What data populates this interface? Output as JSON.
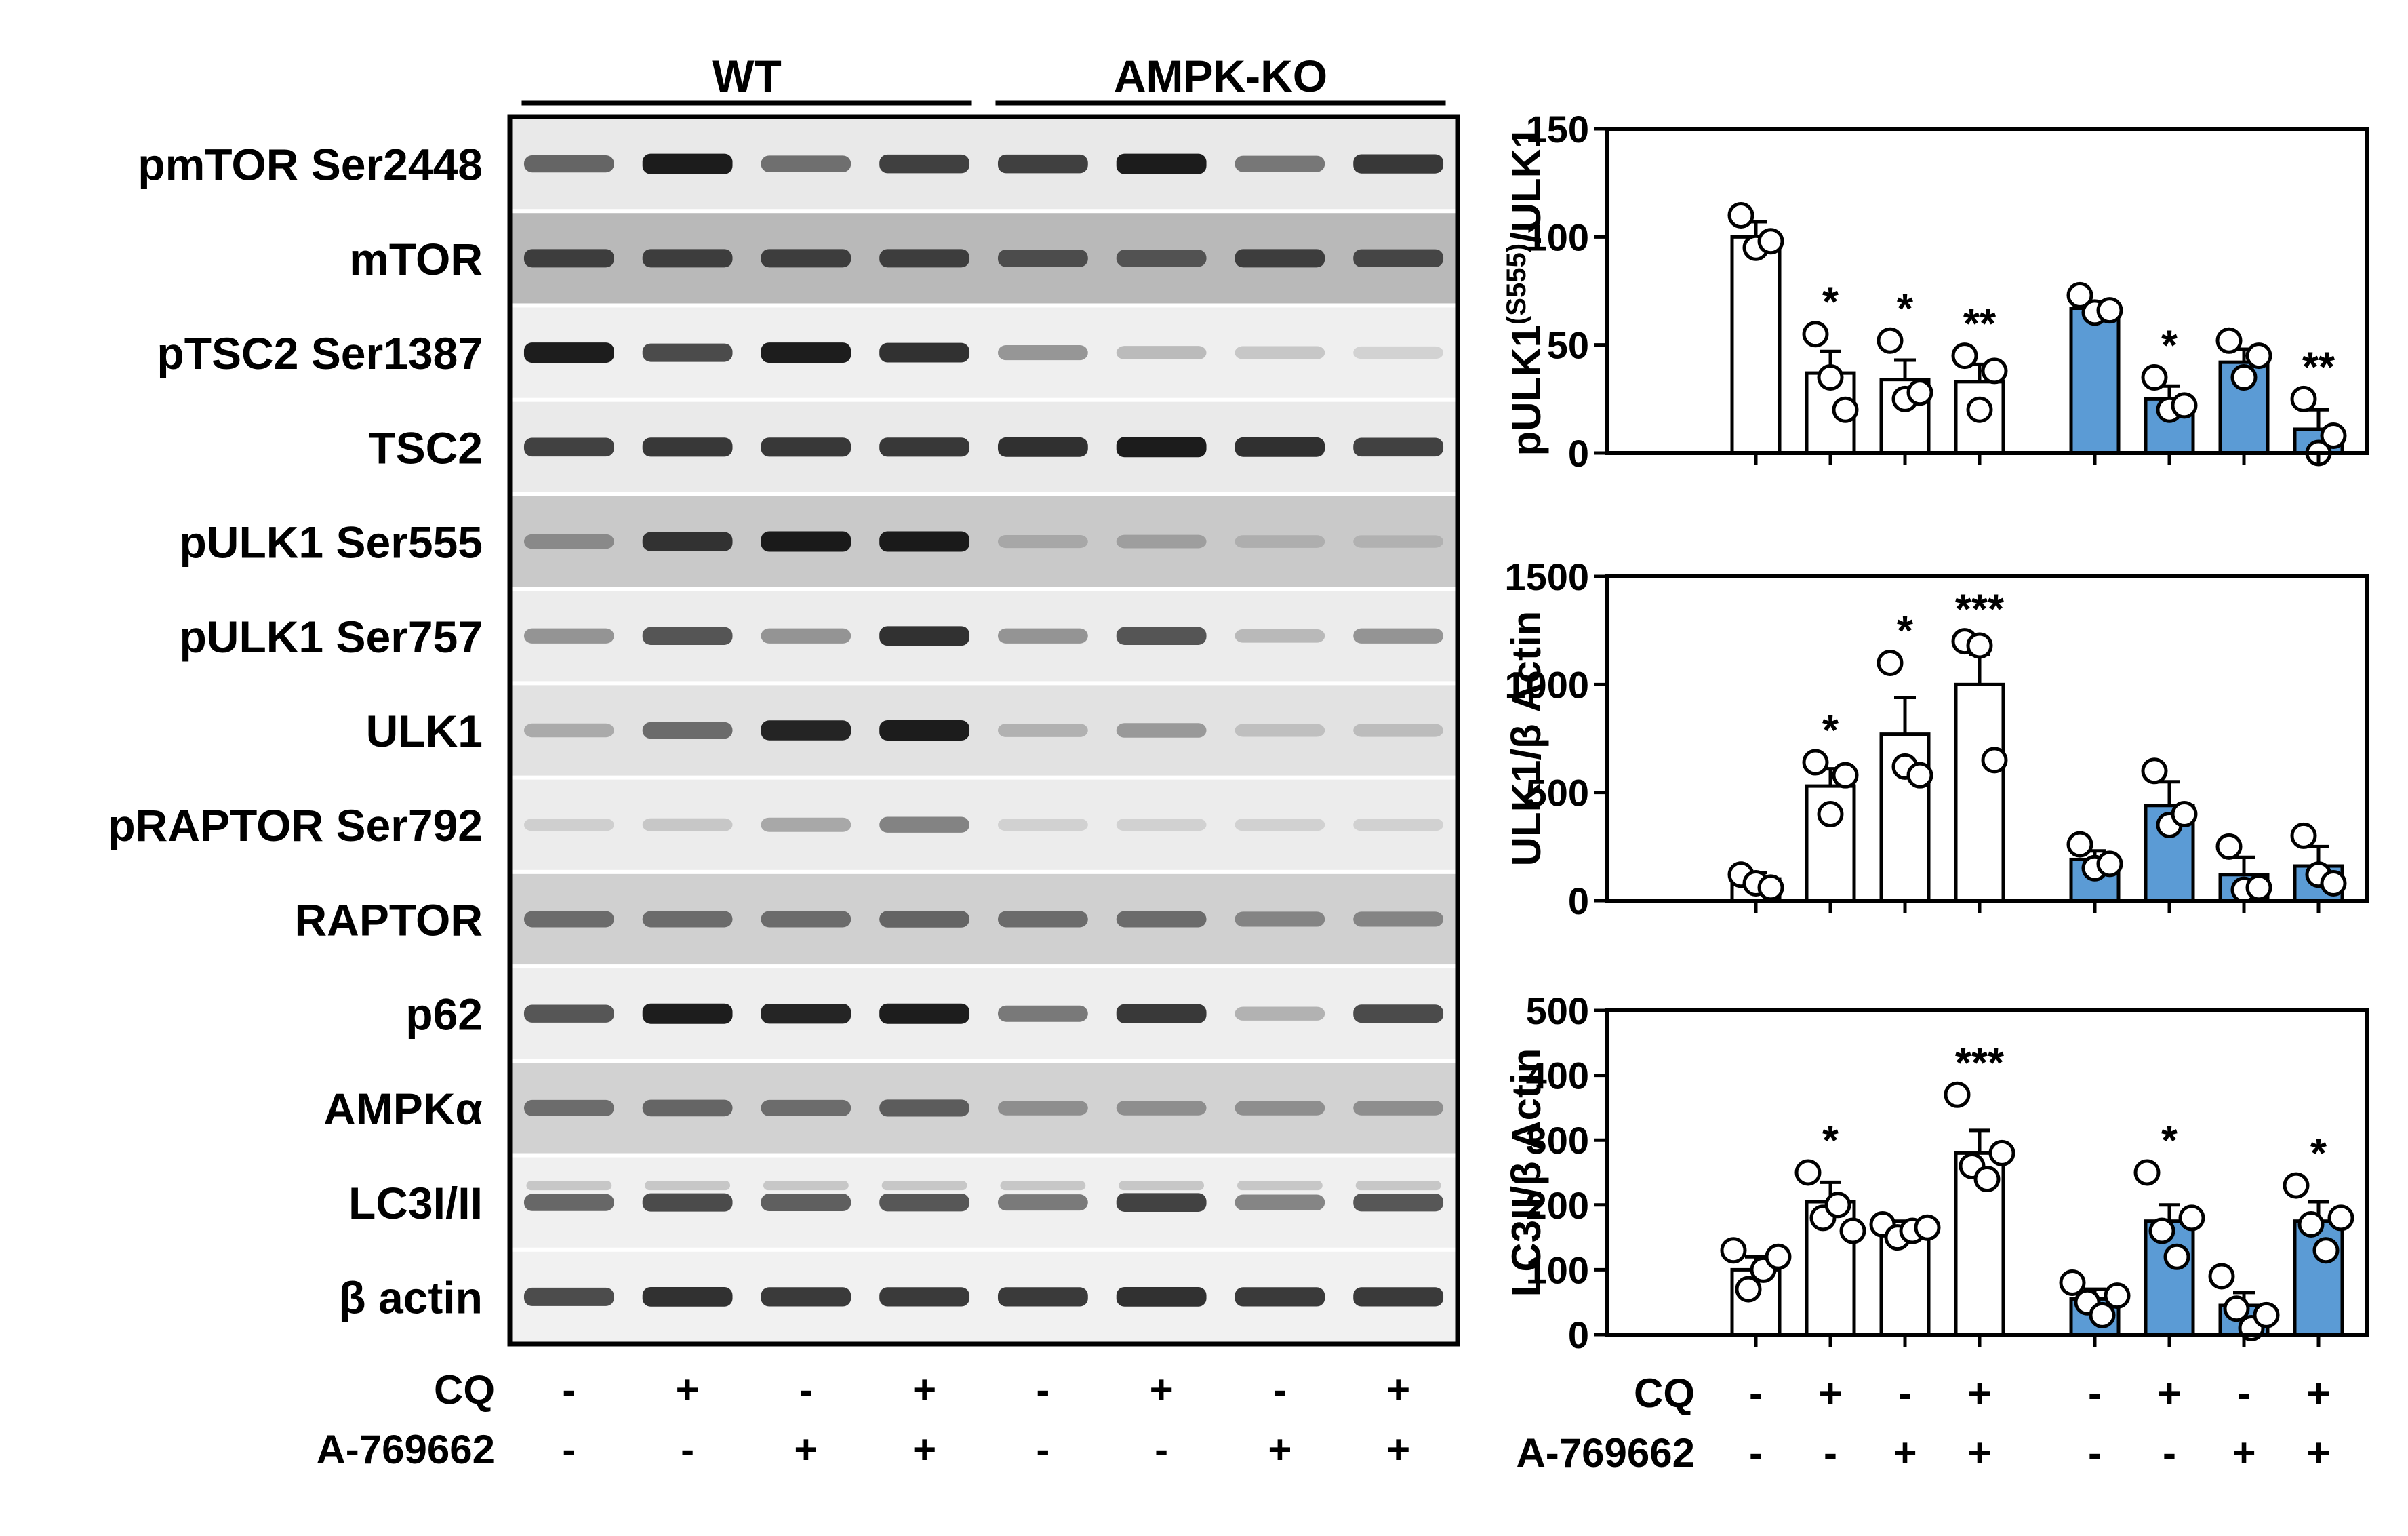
{
  "figure": {
    "groups": [
      "WT",
      "AMPK-KO"
    ],
    "proteins": [
      "pmTOR Ser2448",
      "mTOR",
      "pTSC2 Ser1387",
      "TSC2",
      "pULK1 Ser555",
      "pULK1 Ser757",
      "ULK1",
      "pRAPTOR Ser792",
      "RAPTOR",
      "p62",
      "AMPKα",
      "LC3I/II",
      "β actin"
    ],
    "treatments": [
      {
        "label": "CQ",
        "values": [
          "-",
          "+",
          "-",
          "+",
          "-",
          "+",
          "-",
          "+"
        ]
      },
      {
        "label": "A-769662",
        "values": [
          "-",
          "-",
          "+",
          "+",
          "-",
          "-",
          "+",
          "+"
        ]
      }
    ]
  },
  "colors": {
    "wt_bar": "#ffffff",
    "ko_bar": "#5b9bd5",
    "band": "#111111",
    "text": "#000000"
  },
  "chart_data": [
    {
      "type": "bar",
      "ylabel": "pULK1(S555)/ULK1",
      "ylabel_main": "pULK1",
      "ylabel_sup": "(S555)",
      "ylabel_tail": "/ULK1",
      "ylim": [
        0,
        150
      ],
      "yticks": [
        0,
        50,
        100,
        150
      ],
      "ytick_labels": [
        "0",
        "50",
        "100",
        "150"
      ],
      "grid": false,
      "categories": [
        "WT -/-",
        "WT CQ",
        "WT A",
        "WT CQ+A",
        "KO -/-",
        "KO CQ",
        "KO A",
        "KO CQ+A"
      ],
      "values": [
        100,
        37,
        34,
        33,
        67,
        25,
        42,
        11
      ],
      "errors": [
        7,
        10,
        9,
        8,
        3,
        6,
        6,
        9
      ],
      "points": [
        [
          110,
          95,
          98
        ],
        [
          55,
          35,
          20
        ],
        [
          52,
          25,
          28
        ],
        [
          45,
          20,
          38
        ],
        [
          73,
          65,
          66
        ],
        [
          35,
          20,
          22
        ],
        [
          52,
          35,
          45
        ],
        [
          25,
          0,
          8
        ]
      ],
      "significance": [
        "",
        "*",
        "*",
        "**",
        "",
        "*",
        "",
        "**"
      ],
      "bar_colors": [
        "#ffffff",
        "#ffffff",
        "#ffffff",
        "#ffffff",
        "#5b9bd5",
        "#5b9bd5",
        "#5b9bd5",
        "#5b9bd5"
      ]
    },
    {
      "type": "bar",
      "ylabel": "ULK1/β Actin",
      "ylim": [
        0,
        1500
      ],
      "yticks": [
        0,
        500,
        1000,
        1500
      ],
      "ytick_labels": [
        "0",
        "500",
        "1000",
        "1500"
      ],
      "grid": false,
      "categories": [
        "WT -/-",
        "WT CQ",
        "WT A",
        "WT CQ+A",
        "KO -/-",
        "KO CQ",
        "KO A",
        "KO CQ+A"
      ],
      "values": [
        100,
        530,
        770,
        1000,
        190,
        440,
        120,
        160
      ],
      "errors": [
        30,
        80,
        170,
        140,
        40,
        110,
        80,
        90
      ],
      "points": [
        [
          120,
          80,
          60
        ],
        [
          640,
          400,
          580
        ],
        [
          1100,
          620,
          580
        ],
        [
          1200,
          1180,
          650
        ],
        [
          260,
          150,
          170
        ],
        [
          600,
          350,
          400
        ],
        [
          250,
          50,
          60
        ],
        [
          300,
          120,
          80
        ]
      ],
      "significance": [
        "",
        "*",
        "*",
        "***",
        "",
        "",
        "",
        ""
      ],
      "bar_colors": [
        "#ffffff",
        "#ffffff",
        "#ffffff",
        "#ffffff",
        "#5b9bd5",
        "#5b9bd5",
        "#5b9bd5",
        "#5b9bd5"
      ]
    },
    {
      "type": "bar",
      "ylabel": "LC3II/β Actin",
      "ylim": [
        0,
        500
      ],
      "yticks": [
        0,
        100,
        200,
        300,
        400,
        500
      ],
      "ytick_labels": [
        "0",
        "100",
        "200",
        "300",
        "400",
        "500"
      ],
      "grid": false,
      "categories": [
        "WT -/-",
        "WT CQ",
        "WT A",
        "WT CQ+A",
        "KO -/-",
        "KO CQ",
        "KO A",
        "KO CQ+A"
      ],
      "values": [
        100,
        205,
        160,
        280,
        55,
        175,
        45,
        175
      ],
      "errors": [
        20,
        30,
        15,
        35,
        15,
        25,
        20,
        30
      ],
      "points": [
        [
          130,
          70,
          100,
          120
        ],
        [
          250,
          180,
          200,
          160
        ],
        [
          170,
          150,
          160,
          165
        ],
        [
          370,
          260,
          240,
          280
        ],
        [
          80,
          50,
          30,
          60
        ],
        [
          250,
          160,
          120,
          180
        ],
        [
          90,
          40,
          10,
          30
        ],
        [
          230,
          170,
          130,
          180
        ]
      ],
      "significance": [
        "",
        "*",
        "",
        "***",
        "",
        "*",
        "",
        "*"
      ],
      "bar_colors": [
        "#ffffff",
        "#ffffff",
        "#ffffff",
        "#ffffff",
        "#5b9bd5",
        "#5b9bd5",
        "#5b9bd5",
        "#5b9bd5"
      ]
    }
  ]
}
